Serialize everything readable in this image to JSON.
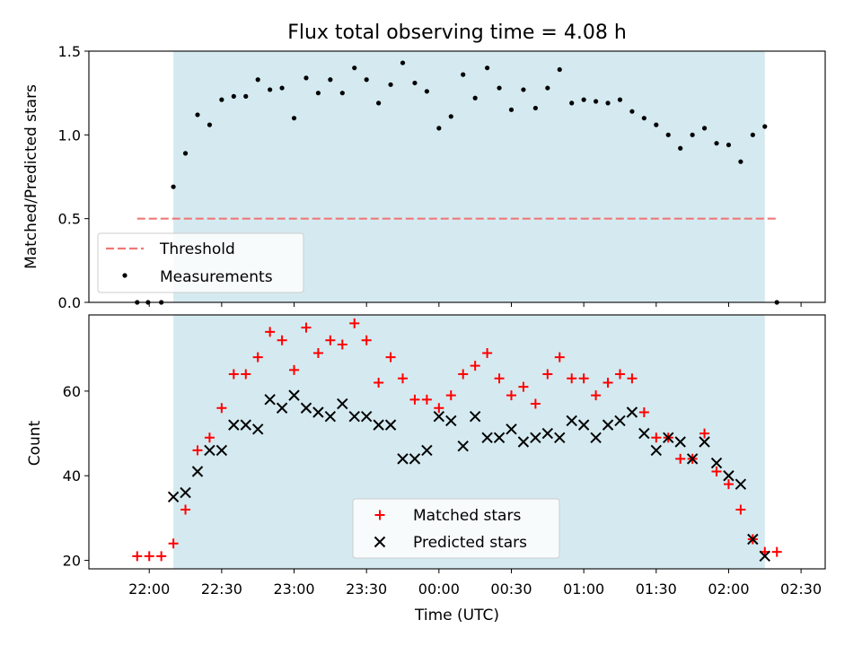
{
  "chart_data": [
    {
      "type": "scatter",
      "title": "Flux total observing time = 4.08 h",
      "ylabel": "Matched/Predicted stars",
      "ylim": [
        0,
        1.5
      ],
      "yticks": [
        "0.0",
        "0.5",
        "1.0",
        "1.5"
      ],
      "x_ticks_minutes": [
        0,
        30,
        60,
        90,
        120,
        150,
        180,
        210,
        240,
        270
      ],
      "grid": false,
      "legend_position": "lower-left",
      "shaded_region": {
        "x_start": 10,
        "x_end": 255,
        "color": "#d4eaf0"
      },
      "threshold": {
        "name": "Threshold",
        "value": 0.5,
        "x_start": -5,
        "x_end": 260,
        "color": "#f07878"
      },
      "series": [
        {
          "name": "Measurements",
          "color": "#000000",
          "x": [
            -5,
            -0.5,
            5,
            10,
            15,
            20,
            25,
            30,
            35,
            40,
            45,
            50,
            55,
            60,
            65,
            70,
            75,
            80,
            85,
            90,
            95,
            100,
            105,
            110,
            115,
            120,
            125,
            130,
            135,
            140,
            145,
            150,
            155,
            160,
            165,
            170,
            175,
            180,
            185,
            190,
            195,
            200,
            205,
            210,
            215,
            220,
            225,
            230,
            235,
            240,
            245,
            250,
            255,
            260
          ],
          "y": [
            0,
            0,
            0,
            0.69,
            0.89,
            1.12,
            1.06,
            1.21,
            1.23,
            1.23,
            1.33,
            1.27,
            1.28,
            1.1,
            1.34,
            1.25,
            1.33,
            1.25,
            1.4,
            1.33,
            1.19,
            1.3,
            1.43,
            1.31,
            1.26,
            1.04,
            1.11,
            1.36,
            1.22,
            1.4,
            1.28,
            1.15,
            1.27,
            1.16,
            1.28,
            1.39,
            1.19,
            1.21,
            1.2,
            1.19,
            1.21,
            1.14,
            1.1,
            1.06,
            1.0,
            0.92,
            1.0,
            1.04,
            0.95,
            0.94,
            0.84,
            1.0,
            1.05,
            0
          ]
        }
      ]
    },
    {
      "type": "scatter",
      "title": "",
      "xlabel": "Time (UTC)",
      "ylabel": "Count",
      "ylim": [
        18,
        78
      ],
      "yticks": [
        "20",
        "40",
        "60"
      ],
      "xticks": [
        "22:00",
        "22:30",
        "23:00",
        "23:30",
        "00:00",
        "00:30",
        "01:00",
        "01:30",
        "02:00",
        "02:30"
      ],
      "x_ticks_minutes": [
        0,
        30,
        60,
        90,
        120,
        150,
        180,
        210,
        240,
        270
      ],
      "grid": false,
      "legend_position": "lower-center",
      "shaded_region": {
        "x_start": 10,
        "x_end": 255,
        "color": "#d4eaf0"
      },
      "series": [
        {
          "name": "Matched stars",
          "marker": "plus",
          "color": "#ff0000",
          "x": [
            -5,
            0,
            5,
            10,
            15,
            20,
            25,
            30,
            35,
            40,
            45,
            50,
            55,
            60,
            65,
            70,
            75,
            80,
            85,
            90,
            95,
            100,
            105,
            110,
            115,
            120,
            125,
            130,
            135,
            140,
            145,
            150,
            155,
            160,
            165,
            170,
            175,
            180,
            185,
            190,
            195,
            200,
            205,
            210,
            215,
            220,
            225,
            230,
            235,
            240,
            245,
            250,
            255,
            260
          ],
          "y": [
            21,
            21,
            21,
            24,
            32,
            46,
            49,
            56,
            64,
            64,
            68,
            74,
            72,
            65,
            75,
            69,
            72,
            71,
            76,
            72,
            62,
            68,
            63,
            58,
            58,
            56,
            59,
            64,
            66,
            69,
            63,
            59,
            61,
            57,
            64,
            68,
            63,
            63,
            59,
            62,
            64,
            63,
            55,
            49,
            49,
            44,
            44,
            50,
            41,
            38,
            32,
            25,
            22,
            22
          ]
        },
        {
          "name": "Predicted stars",
          "marker": "x",
          "color": "#000000",
          "x": [
            10,
            15,
            20,
            25,
            30,
            35,
            40,
            45,
            50,
            55,
            60,
            65,
            70,
            75,
            80,
            85,
            90,
            95,
            100,
            105,
            110,
            115,
            120,
            125,
            130,
            135,
            140,
            145,
            150,
            155,
            160,
            165,
            170,
            175,
            180,
            185,
            190,
            195,
            200,
            205,
            210,
            215,
            220,
            225,
            230,
            235,
            240,
            245,
            250,
            255
          ],
          "y": [
            35,
            36,
            41,
            46,
            46,
            52,
            52,
            51,
            58,
            56,
            59,
            56,
            55,
            54,
            57,
            54,
            54,
            52,
            52,
            44,
            44,
            46,
            54,
            53,
            47,
            54,
            49,
            49,
            51,
            48,
            49,
            50,
            49,
            53,
            52,
            49,
            52,
            53,
            55,
            50,
            46,
            49,
            48,
            44,
            48,
            43,
            40,
            38,
            25,
            21
          ]
        }
      ]
    }
  ]
}
